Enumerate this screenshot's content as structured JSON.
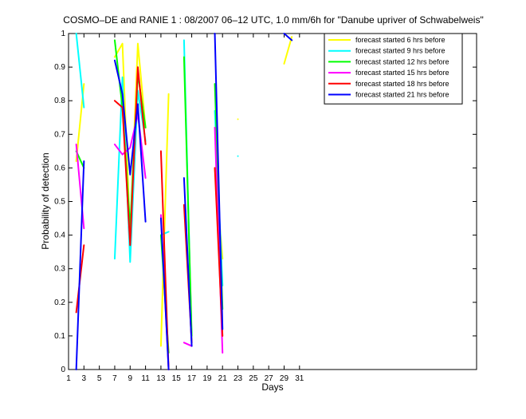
{
  "chart_data": {
    "type": "line",
    "title": "COSMO–DE and RANIE 1 : 08/2007 06–12 UTC, 1.0 mm/6h for \"Danube upriver of Schwabelweis\"",
    "xlabel": "Days",
    "ylabel": "Probability of detection",
    "x": [
      1,
      2,
      3,
      4,
      5,
      6,
      7,
      8,
      9,
      10,
      11,
      12,
      13,
      14,
      15,
      16,
      17,
      18,
      19,
      20,
      21,
      22,
      23,
      24,
      25,
      26,
      27,
      28,
      29,
      30,
      31
    ],
    "series": [
      {
        "name": "forecast started 6 hrs before",
        "color": "#ffff00",
        "values": [
          null,
          0.62,
          0.85,
          null,
          null,
          null,
          0.93,
          0.97,
          0.4,
          0.97,
          0.72,
          null,
          0.07,
          0.82,
          null,
          null,
          null,
          null,
          null,
          0.6,
          0.33,
          null,
          0.745,
          null,
          null,
          null,
          null,
          null,
          0.91,
          0.99,
          null
        ]
      },
      {
        "name": "forecast started 9 hrs before",
        "color": "#00ffff",
        "values": [
          null,
          1.0,
          0.78,
          null,
          null,
          null,
          0.33,
          0.87,
          0.32,
          0.83,
          0.68,
          null,
          0.4,
          0.41,
          null,
          0.98,
          0.08,
          null,
          null,
          0.77,
          0.25,
          null,
          0.635,
          null,
          null,
          null,
          null,
          null,
          null,
          null,
          null
        ]
      },
      {
        "name": "forecast started 12 hrs before",
        "color": "#00ff00",
        "values": [
          null,
          0.65,
          0.6,
          null,
          null,
          null,
          0.98,
          0.78,
          0.42,
          0.88,
          0.72,
          null,
          0.4,
          0.05,
          null,
          0.93,
          0.1,
          null,
          null,
          0.85,
          0.18,
          null,
          null,
          null,
          null,
          null,
          null,
          null,
          null,
          null,
          null
        ]
      },
      {
        "name": "forecast started 15 hrs before",
        "color": "#ff00ff",
        "values": [
          null,
          0.67,
          0.42,
          null,
          null,
          null,
          0.67,
          0.64,
          0.66,
          0.76,
          0.57,
          null,
          0.46,
          0.0,
          null,
          0.08,
          0.07,
          null,
          null,
          0.72,
          0.05,
          null,
          null,
          null,
          null,
          null,
          null,
          null,
          null,
          null,
          null
        ]
      },
      {
        "name": "forecast started 18 hrs before",
        "color": "#ff0000",
        "values": [
          null,
          0.17,
          0.37,
          null,
          null,
          null,
          0.8,
          0.78,
          0.37,
          0.9,
          0.67,
          null,
          0.65,
          0.0,
          null,
          0.49,
          0.08,
          null,
          null,
          0.6,
          0.1,
          null,
          null,
          null,
          null,
          null,
          null,
          null,
          null,
          null,
          null
        ]
      },
      {
        "name": "forecast started 21 hrs before",
        "color": "#0000ff",
        "values": [
          null,
          0.0,
          0.62,
          null,
          null,
          null,
          0.92,
          0.82,
          0.58,
          0.79,
          0.44,
          null,
          0.45,
          0.0,
          null,
          0.57,
          0.07,
          null,
          null,
          1.0,
          0.12,
          null,
          null,
          null,
          null,
          null,
          null,
          null,
          1.0,
          0.98,
          null
        ]
      }
    ],
    "xlim": [
      1,
      54
    ],
    "xticks": [
      1,
      3,
      5,
      7,
      9,
      11,
      13,
      15,
      17,
      19,
      21,
      23,
      25,
      27,
      29,
      31
    ],
    "ylim": [
      0,
      1
    ],
    "yticks": [
      0,
      0.1,
      0.2,
      0.3,
      0.4,
      0.5,
      0.6,
      0.7,
      0.8,
      0.9,
      1
    ],
    "legend": "upper right"
  }
}
